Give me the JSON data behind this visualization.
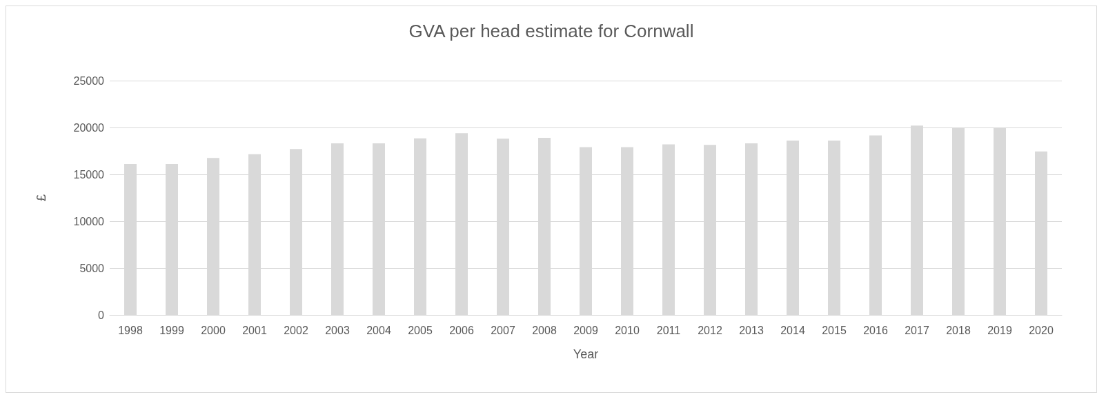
{
  "chart_data": {
    "type": "bar",
    "title": "GVA per head estimate for Cornwall",
    "xlabel": "Year",
    "ylabel": "£",
    "categories": [
      "1998",
      "1999",
      "2000",
      "2001",
      "2002",
      "2003",
      "2004",
      "2005",
      "2006",
      "2007",
      "2008",
      "2009",
      "2010",
      "2011",
      "2012",
      "2013",
      "2014",
      "2015",
      "2016",
      "2017",
      "2018",
      "2019",
      "2020"
    ],
    "values": [
      16100,
      16100,
      16750,
      17150,
      17700,
      18300,
      18300,
      18850,
      19400,
      18800,
      18900,
      17900,
      17900,
      18200,
      18150,
      18300,
      18600,
      18600,
      19150,
      20200,
      20000,
      20000,
      17450
    ],
    "color": "#d9d9d9",
    "ylim": [
      0,
      25000
    ],
    "yticks": [
      0,
      5000,
      10000,
      15000,
      20000,
      25000
    ],
    "grid": "y"
  }
}
